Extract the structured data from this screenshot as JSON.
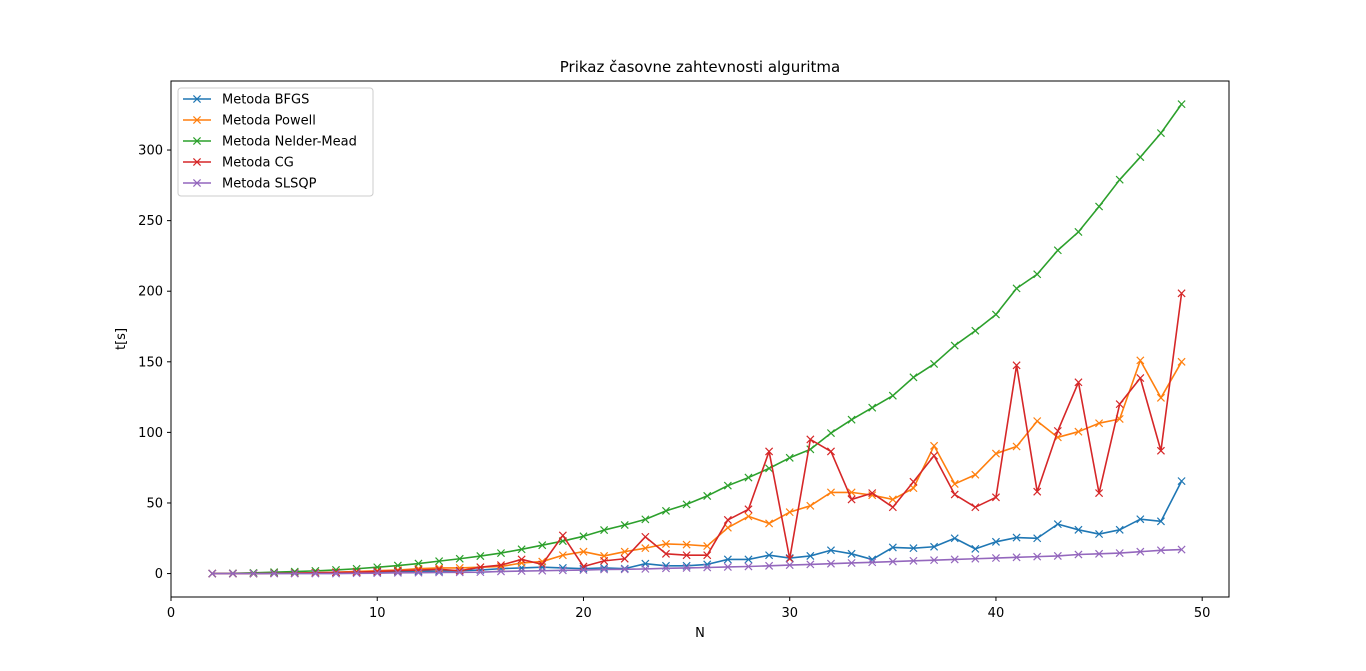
{
  "chart_data": {
    "type": "line",
    "title": "Prikaz časovne zahtevnosti alguritma",
    "xlabel": "N",
    "ylabel": "t[s]",
    "xlim": [
      0,
      51.3
    ],
    "ylim": [
      -16.6,
      348.9
    ],
    "xticks": [
      0,
      10,
      20,
      30,
      40,
      50
    ],
    "yticks": [
      0,
      50,
      100,
      150,
      200,
      250,
      300
    ],
    "grid": false,
    "legend_position": "top-left",
    "marker": "x",
    "x": [
      2,
      3,
      4,
      5,
      6,
      7,
      8,
      9,
      10,
      11,
      12,
      13,
      14,
      15,
      16,
      17,
      18,
      19,
      20,
      21,
      22,
      23,
      24,
      25,
      26,
      27,
      28,
      29,
      30,
      31,
      32,
      33,
      34,
      35,
      36,
      37,
      38,
      39,
      40,
      41,
      42,
      43,
      44,
      45,
      46,
      47,
      48,
      49
    ],
    "series": [
      {
        "name": "Metoda BFGS",
        "color": "#1f77b4",
        "values": [
          0,
          0,
          0,
          0.3,
          0.4,
          0.5,
          0.6,
          0.8,
          1.0,
          1.3,
          1.5,
          1.8,
          2.1,
          2.5,
          3.5,
          4.0,
          4.5,
          4.0,
          3.5,
          4.0,
          3.5,
          7.0,
          5.5,
          5.5,
          6.5,
          10.0,
          10.0,
          13.0,
          11.0,
          12.5,
          16.5,
          14.0,
          10.0,
          18.5,
          18.0,
          19.0,
          25.0,
          17.5,
          22.5,
          25.5,
          25.0,
          35.0,
          31.0,
          28.0,
          31.0,
          38.5,
          37.0,
          65.5
        ]
      },
      {
        "name": "Metoda Powell",
        "color": "#ff7f0e",
        "values": [
          0,
          0,
          0,
          0.3,
          0.4,
          0.6,
          1.0,
          1.5,
          2.0,
          2.5,
          3.5,
          4.0,
          4.0,
          4.5,
          5.0,
          7.5,
          8.5,
          13.0,
          15.5,
          12.5,
          15.5,
          18.0,
          21.0,
          20.5,
          19.5,
          32.5,
          40.5,
          35.5,
          43.5,
          48.0,
          57.5,
          57.5,
          55.5,
          52.5,
          60.5,
          90.5,
          63.5,
          70.0,
          85.0,
          90.0,
          108.0,
          96.5,
          100.5,
          106.5,
          109.5,
          151.0,
          124.5,
          150.0
        ]
      },
      {
        "name": "Metoda Nelder-Mead",
        "color": "#2ca02c",
        "values": [
          0,
          0.2,
          0.5,
          1.0,
          1.4,
          1.9,
          2.6,
          3.4,
          4.5,
          5.7,
          7.1,
          8.8,
          10.5,
          12.4,
          14.5,
          17.2,
          20.1,
          23.0,
          26.4,
          30.8,
          34.4,
          38.4,
          44.4,
          49.0,
          55.0,
          62.3,
          68.0,
          74.5,
          82.0,
          88.0,
          99.5,
          109.0,
          117.5,
          126.0,
          139.0,
          148.5,
          161.5,
          172.0,
          183.5,
          202.0,
          212.0,
          229.0,
          242.0,
          260.0,
          279.0,
          295.0,
          312.0,
          332.5
        ]
      },
      {
        "name": "Metoda CG",
        "color": "#d62728",
        "values": [
          0,
          0,
          0,
          0.2,
          0.3,
          0.5,
          0.8,
          1.0,
          1.5,
          2.0,
          2.5,
          3.0,
          2.0,
          4.5,
          6.0,
          10.0,
          6.5,
          27.0,
          5.0,
          9.0,
          10.5,
          26.0,
          14.0,
          13.0,
          13.0,
          38.0,
          45.5,
          86.5,
          10.5,
          95.0,
          86.5,
          52.5,
          57.0,
          47.0,
          65.0,
          83.5,
          56.0,
          47.0,
          54.0,
          147.5,
          58.0,
          101.0,
          135.5,
          57.0,
          120.0,
          138.5,
          87.0,
          198.5
        ]
      },
      {
        "name": "Metoda SLSQP",
        "color": "#9467bd",
        "values": [
          0,
          0,
          0,
          0,
          0,
          0,
          0,
          0.2,
          0.3,
          0.5,
          0.6,
          0.8,
          0.9,
          1.0,
          1.5,
          1.8,
          2.0,
          2.3,
          2.5,
          2.9,
          3.0,
          3.3,
          3.7,
          4.0,
          4.3,
          4.7,
          5.0,
          5.5,
          6.0,
          6.5,
          7.0,
          7.5,
          8.0,
          8.5,
          9.0,
          9.5,
          10.0,
          10.5,
          11.0,
          11.5,
          12.0,
          12.5,
          13.5,
          14.0,
          14.5,
          15.5,
          16.5,
          17.0
        ]
      }
    ]
  }
}
